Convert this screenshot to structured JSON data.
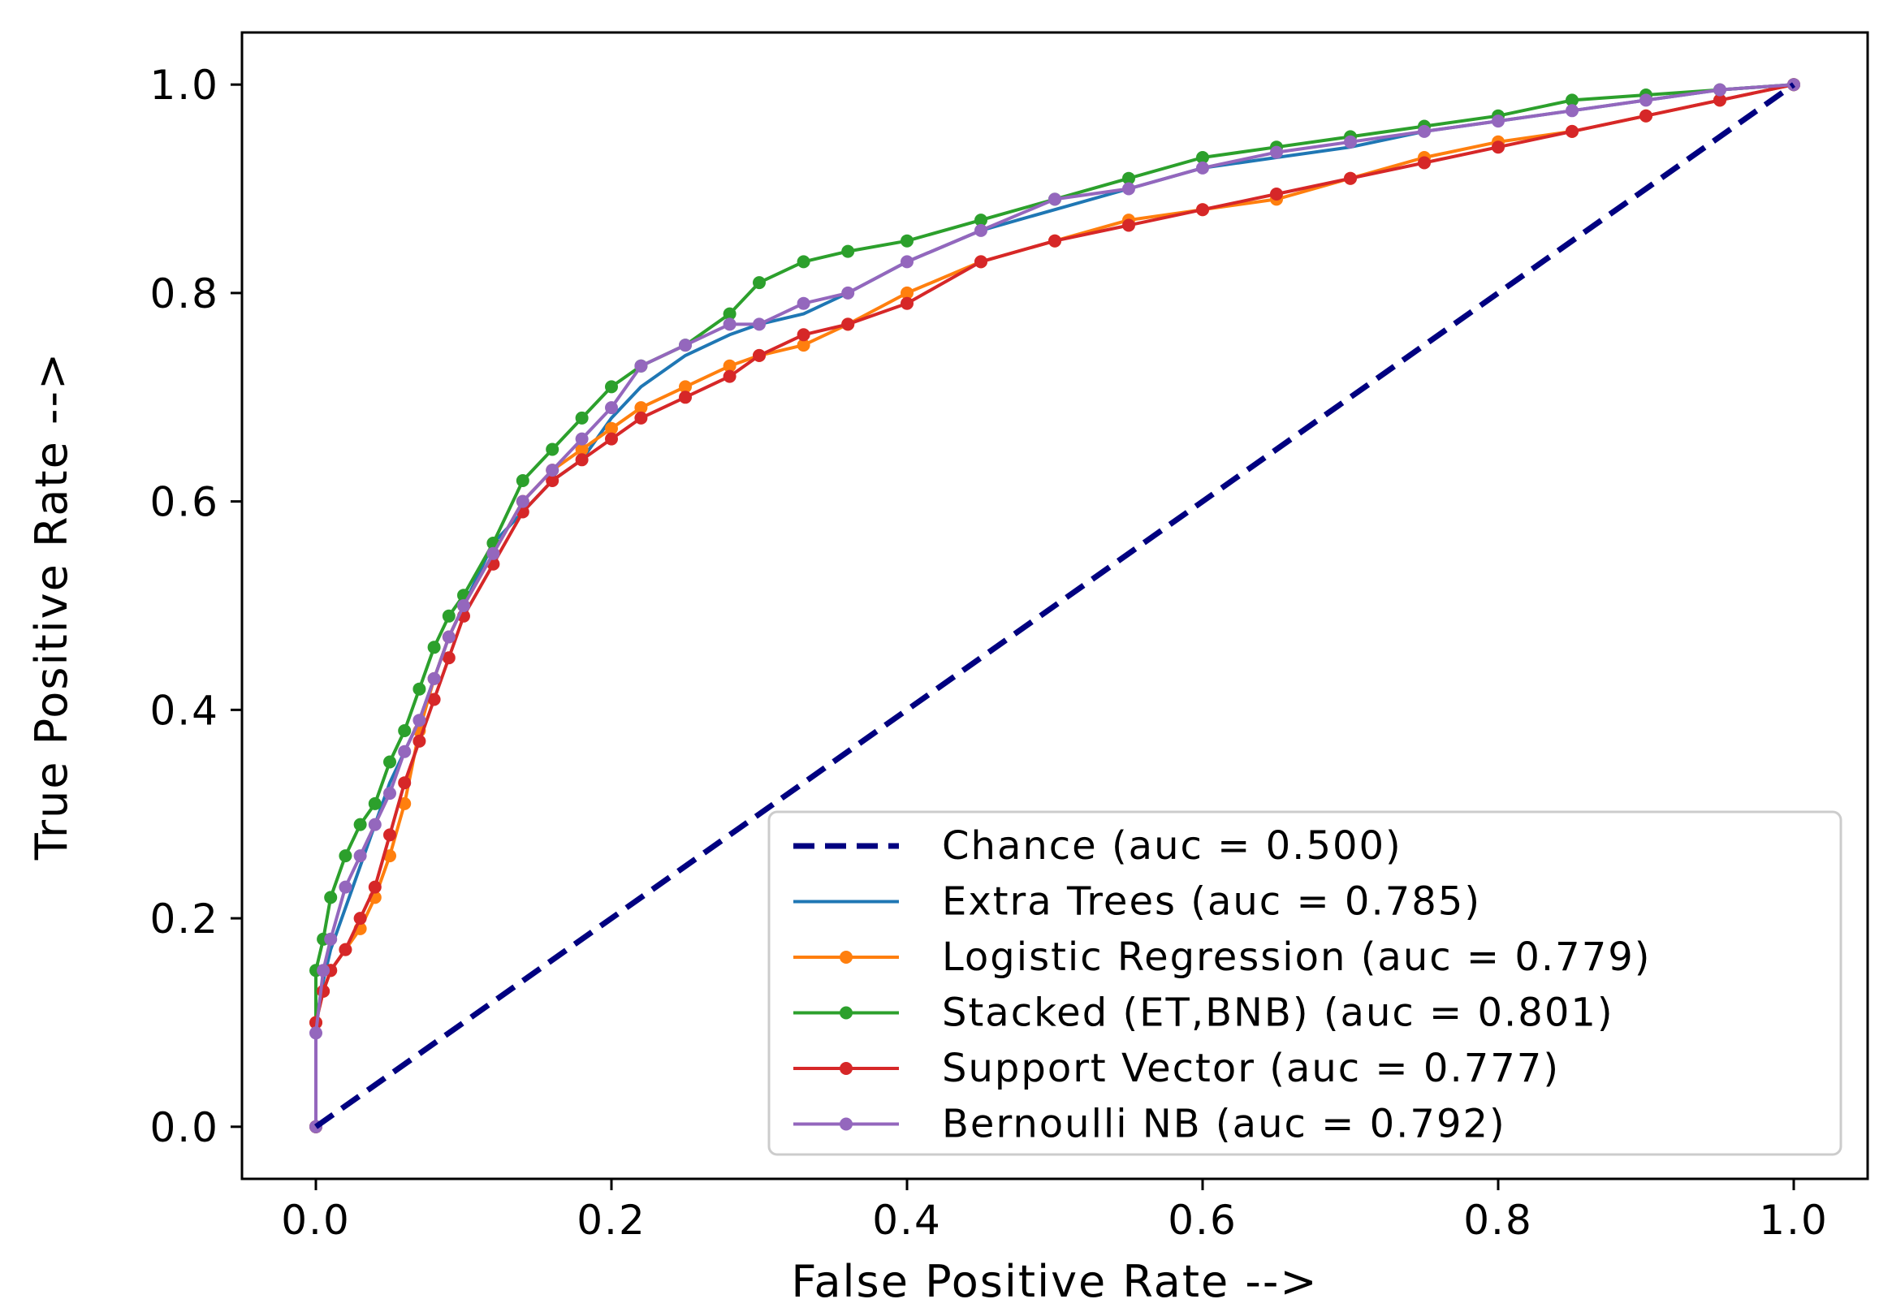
{
  "chart_data": {
    "type": "line",
    "title": "",
    "xlabel": "False Positive Rate -->",
    "ylabel": "True Positive Rate -->",
    "xlim": [
      -0.05,
      1.05
    ],
    "ylim": [
      -0.05,
      1.05
    ],
    "xticks": [
      0.0,
      0.2,
      0.4,
      0.6,
      0.8,
      1.0
    ],
    "yticks": [
      0.0,
      0.2,
      0.4,
      0.6,
      0.8,
      1.0
    ],
    "xtick_labels": [
      "0.0",
      "0.2",
      "0.4",
      "0.6",
      "0.8",
      "1.0"
    ],
    "ytick_labels": [
      "0.0",
      "0.2",
      "0.4",
      "0.6",
      "0.8",
      "1.0"
    ],
    "grid": false,
    "legend_position": "bottom-right",
    "series": [
      {
        "name": "Chance",
        "label": "Chance (auc = 0.500)",
        "color": "#000080",
        "style": "dashed",
        "markers": false,
        "auc": 0.5,
        "x": [
          0.0,
          1.0
        ],
        "y": [
          0.0,
          1.0
        ]
      },
      {
        "name": "Extra Trees",
        "label": "Extra Trees (auc = 0.785)",
        "color": "#1f77b4",
        "style": "solid",
        "markers": false,
        "auc": 0.785,
        "x": [
          0.0,
          0.0,
          0.005,
          0.01,
          0.02,
          0.03,
          0.04,
          0.05,
          0.06,
          0.07,
          0.08,
          0.09,
          0.1,
          0.12,
          0.14,
          0.16,
          0.18,
          0.2,
          0.22,
          0.25,
          0.28,
          0.3,
          0.33,
          0.36,
          0.4,
          0.45,
          0.5,
          0.55,
          0.6,
          0.65,
          0.7,
          0.75,
          0.8,
          0.85,
          0.9,
          0.95,
          1.0
        ],
        "y": [
          0.0,
          0.1,
          0.14,
          0.17,
          0.21,
          0.25,
          0.29,
          0.33,
          0.36,
          0.39,
          0.43,
          0.47,
          0.5,
          0.56,
          0.59,
          0.62,
          0.64,
          0.68,
          0.71,
          0.74,
          0.76,
          0.77,
          0.78,
          0.8,
          0.83,
          0.86,
          0.88,
          0.9,
          0.92,
          0.93,
          0.94,
          0.955,
          0.965,
          0.975,
          0.985,
          0.995,
          1.0
        ]
      },
      {
        "name": "Logistic Regression",
        "label": "Logistic Regression (auc = 0.779)",
        "color": "#ff7f0e",
        "style": "solid",
        "markers": true,
        "auc": 0.779,
        "x": [
          0.0,
          0.0,
          0.005,
          0.01,
          0.02,
          0.03,
          0.04,
          0.05,
          0.06,
          0.07,
          0.08,
          0.09,
          0.1,
          0.12,
          0.14,
          0.16,
          0.18,
          0.2,
          0.22,
          0.25,
          0.28,
          0.3,
          0.33,
          0.36,
          0.4,
          0.45,
          0.5,
          0.55,
          0.6,
          0.65,
          0.7,
          0.75,
          0.8,
          0.85,
          0.9,
          0.95,
          1.0
        ],
        "y": [
          0.0,
          0.1,
          0.13,
          0.15,
          0.17,
          0.19,
          0.22,
          0.26,
          0.31,
          0.38,
          0.43,
          0.47,
          0.5,
          0.55,
          0.6,
          0.63,
          0.65,
          0.67,
          0.69,
          0.71,
          0.73,
          0.74,
          0.75,
          0.77,
          0.8,
          0.83,
          0.85,
          0.87,
          0.88,
          0.89,
          0.91,
          0.93,
          0.945,
          0.955,
          0.97,
          0.985,
          1.0
        ]
      },
      {
        "name": "Stacked (ET,BNB)",
        "label": "Stacked (ET,BNB) (auc = 0.801)",
        "color": "#2ca02c",
        "style": "solid",
        "markers": true,
        "auc": 0.801,
        "x": [
          0.0,
          0.0,
          0.005,
          0.01,
          0.02,
          0.03,
          0.04,
          0.05,
          0.06,
          0.07,
          0.08,
          0.09,
          0.1,
          0.12,
          0.14,
          0.16,
          0.18,
          0.2,
          0.22,
          0.25,
          0.28,
          0.3,
          0.33,
          0.36,
          0.4,
          0.45,
          0.5,
          0.55,
          0.6,
          0.65,
          0.7,
          0.75,
          0.8,
          0.85,
          0.9,
          0.95,
          1.0
        ],
        "y": [
          0.0,
          0.15,
          0.18,
          0.22,
          0.26,
          0.29,
          0.31,
          0.35,
          0.38,
          0.42,
          0.46,
          0.49,
          0.51,
          0.56,
          0.62,
          0.65,
          0.68,
          0.71,
          0.73,
          0.75,
          0.78,
          0.81,
          0.83,
          0.84,
          0.85,
          0.87,
          0.89,
          0.91,
          0.93,
          0.94,
          0.95,
          0.96,
          0.97,
          0.985,
          0.99,
          0.995,
          1.0
        ]
      },
      {
        "name": "Support Vector",
        "label": "Support Vector (auc = 0.777)",
        "color": "#d62728",
        "style": "solid",
        "markers": true,
        "auc": 0.777,
        "x": [
          0.0,
          0.0,
          0.005,
          0.01,
          0.02,
          0.03,
          0.04,
          0.05,
          0.06,
          0.07,
          0.08,
          0.09,
          0.1,
          0.12,
          0.14,
          0.16,
          0.18,
          0.2,
          0.22,
          0.25,
          0.28,
          0.3,
          0.33,
          0.36,
          0.4,
          0.45,
          0.5,
          0.55,
          0.6,
          0.65,
          0.7,
          0.75,
          0.8,
          0.85,
          0.9,
          0.95,
          1.0
        ],
        "y": [
          0.0,
          0.1,
          0.13,
          0.15,
          0.17,
          0.2,
          0.23,
          0.28,
          0.33,
          0.37,
          0.41,
          0.45,
          0.49,
          0.54,
          0.59,
          0.62,
          0.64,
          0.66,
          0.68,
          0.7,
          0.72,
          0.74,
          0.76,
          0.77,
          0.79,
          0.83,
          0.85,
          0.865,
          0.88,
          0.895,
          0.91,
          0.925,
          0.94,
          0.955,
          0.97,
          0.985,
          1.0
        ]
      },
      {
        "name": "Bernoulli NB",
        "label": "Bernoulli NB (auc = 0.792)",
        "color": "#9467bd",
        "style": "solid",
        "markers": true,
        "auc": 0.792,
        "x": [
          0.0,
          0.0,
          0.005,
          0.01,
          0.02,
          0.03,
          0.04,
          0.05,
          0.06,
          0.07,
          0.08,
          0.09,
          0.1,
          0.12,
          0.14,
          0.16,
          0.18,
          0.2,
          0.22,
          0.25,
          0.28,
          0.3,
          0.33,
          0.36,
          0.4,
          0.45,
          0.5,
          0.55,
          0.6,
          0.65,
          0.7,
          0.75,
          0.8,
          0.85,
          0.9,
          0.95,
          1.0
        ],
        "y": [
          0.0,
          0.09,
          0.15,
          0.18,
          0.23,
          0.26,
          0.29,
          0.32,
          0.36,
          0.39,
          0.43,
          0.47,
          0.5,
          0.55,
          0.6,
          0.63,
          0.66,
          0.69,
          0.73,
          0.75,
          0.77,
          0.77,
          0.79,
          0.8,
          0.83,
          0.86,
          0.89,
          0.9,
          0.92,
          0.935,
          0.945,
          0.955,
          0.965,
          0.975,
          0.985,
          0.995,
          1.0
        ]
      }
    ]
  }
}
